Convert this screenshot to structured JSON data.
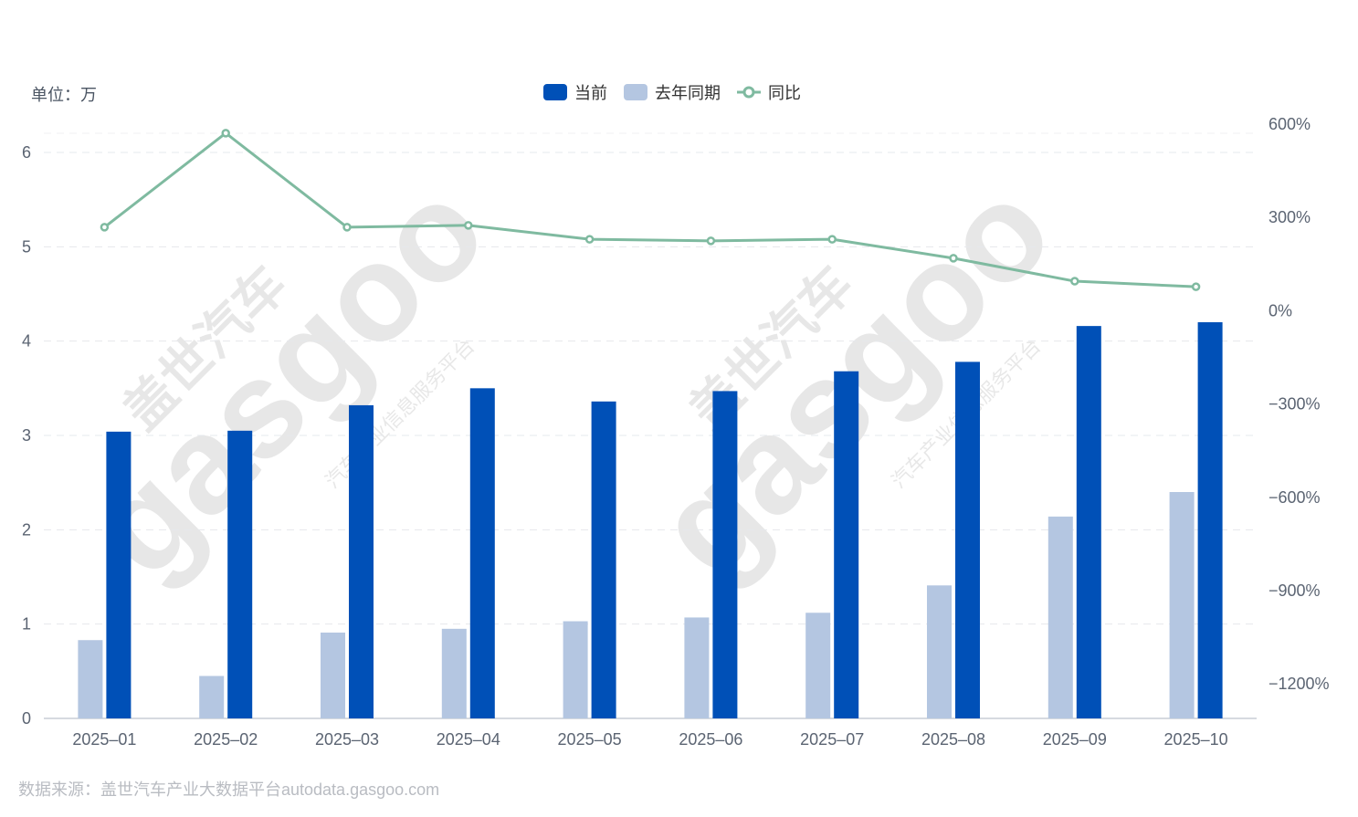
{
  "unit_label": "单位：万",
  "legend": [
    {
      "label": "当前",
      "color": "#0050b7",
      "type": "bar"
    },
    {
      "label": "去年同期",
      "color": "#b4c6e1",
      "type": "bar"
    },
    {
      "label": "同比",
      "color": "#7fbaa0",
      "type": "line"
    }
  ],
  "footer": "数据来源：盖世汽车产业大数据平台autodata.gasgoo.com",
  "watermark": {
    "brand": "gasgoo",
    "cn": "盖世汽车",
    "sub": "汽车产业信息服务平台"
  },
  "chart_data": {
    "type": "bar",
    "title": "",
    "xlabel": "",
    "ylabel": "单位：万",
    "y2label": "同比",
    "categories": [
      "2025-01",
      "2025-02",
      "2025-03",
      "2025-04",
      "2025-05",
      "2025-06",
      "2025-07",
      "2025-08",
      "2025-09",
      "2025-10"
    ],
    "series": [
      {
        "name": "去年同期",
        "type": "bar",
        "axis": "left",
        "color": "#b4c6e1",
        "values": [
          0.83,
          0.45,
          0.91,
          0.95,
          1.03,
          1.07,
          1.12,
          1.41,
          2.14,
          2.4
        ]
      },
      {
        "name": "当前",
        "type": "bar",
        "axis": "left",
        "color": "#0050b7",
        "values": [
          3.04,
          3.05,
          3.32,
          3.5,
          3.36,
          3.47,
          3.68,
          3.78,
          4.16,
          4.2
        ]
      },
      {
        "name": "同比",
        "type": "line",
        "axis": "right",
        "unit": "%",
        "color": "#7fbaa0",
        "values": [
          268,
          571,
          268,
          274,
          229,
          224,
          229,
          168,
          94,
          76
        ]
      }
    ],
    "ylim": [
      0,
      6
    ],
    "yticks": [
      0,
      1,
      2,
      3,
      4,
      5,
      6
    ],
    "y2lim": [
      -1200,
      600
    ],
    "y2ticks": [
      "600%",
      "300%",
      "0%",
      "-300%",
      "-600%",
      "-900%",
      "-1200%"
    ],
    "grid": true,
    "legend_position": "top"
  }
}
